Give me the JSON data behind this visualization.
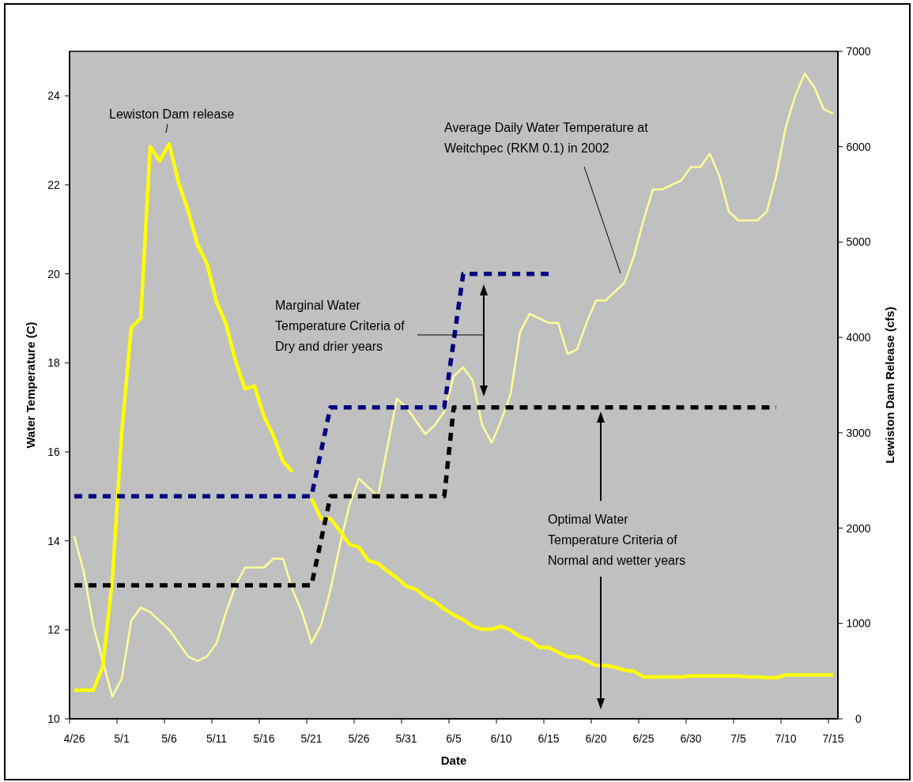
{
  "chart_data": {
    "type": "line",
    "xlabel": "Date",
    "ylabel": "Water Temperature (C)",
    "y2label": "Lewiston Dam Release (cfs)",
    "x": [
      "2002-04-26",
      "2002-04-27",
      "2002-04-28",
      "2002-04-29",
      "2002-04-30",
      "2002-05-01",
      "2002-05-02",
      "2002-05-03",
      "2002-05-04",
      "2002-05-05",
      "2002-05-06",
      "2002-05-07",
      "2002-05-08",
      "2002-05-09",
      "2002-05-10",
      "2002-05-11",
      "2002-05-12",
      "2002-05-13",
      "2002-05-14",
      "2002-05-15",
      "2002-05-16",
      "2002-05-17",
      "2002-05-18",
      "2002-05-19",
      "2002-05-20",
      "2002-05-21",
      "2002-05-22",
      "2002-05-23",
      "2002-05-24",
      "2002-05-25",
      "2002-05-26",
      "2002-05-27",
      "2002-05-28",
      "2002-05-29",
      "2002-05-30",
      "2002-05-31",
      "2002-06-01",
      "2002-06-02",
      "2002-06-03",
      "2002-06-04",
      "2002-06-05",
      "2002-06-06",
      "2002-06-07",
      "2002-06-08",
      "2002-06-09",
      "2002-06-10",
      "2002-06-11",
      "2002-06-12",
      "2002-06-13",
      "2002-06-14",
      "2002-06-15",
      "2002-06-16",
      "2002-06-17",
      "2002-06-18",
      "2002-06-19",
      "2002-06-20",
      "2002-06-21",
      "2002-06-22",
      "2002-06-23",
      "2002-06-24",
      "2002-06-25",
      "2002-06-26",
      "2002-06-27",
      "2002-06-28",
      "2002-06-29",
      "2002-06-30",
      "2002-07-01",
      "2002-07-02",
      "2002-07-03",
      "2002-07-04",
      "2002-07-05",
      "2002-07-06",
      "2002-07-07",
      "2002-07-08",
      "2002-07-09",
      "2002-07-10",
      "2002-07-11",
      "2002-07-12",
      "2002-07-13",
      "2002-07-14",
      "2002-07-15"
    ],
    "series": [
      {
        "color": "#ffff99",
        "values": [
          14.1,
          13.3,
          12.1,
          11.3,
          10.5,
          10.9,
          12.2,
          12.5,
          12.4,
          12.2,
          12.0,
          11.7,
          11.4,
          11.3,
          11.4,
          11.7,
          12.4,
          13.0,
          13.4,
          13.4,
          13.4,
          13.6,
          13.6,
          12.9,
          12.4,
          11.7,
          12.1,
          12.9,
          13.9,
          14.8,
          15.4,
          15.2,
          15.0,
          16.1,
          17.2,
          17.0,
          16.7,
          16.4,
          16.6,
          16.9,
          17.7,
          17.9,
          17.6,
          16.6,
          16.2,
          16.7,
          17.3,
          18.7,
          19.1,
          19.0,
          18.9,
          18.9,
          18.2,
          18.3,
          18.9,
          19.4,
          19.4,
          19.6,
          19.8,
          20.4,
          21.2,
          21.9,
          21.9,
          22.0,
          22.1,
          22.4,
          22.4,
          22.7,
          22.2,
          21.4,
          21.2,
          21.2,
          21.2,
          21.4,
          22.2,
          23.3,
          24.0,
          24.5,
          24.2,
          23.7,
          23.6
        ]
      },
      {
        "color": "#ffff00",
        "axis": "y2",
        "values": [
          300,
          300,
          300,
          550,
          1450,
          3000,
          4100,
          4200,
          6000,
          5850,
          6030,
          5620,
          5330,
          4970,
          4770,
          4370,
          4140,
          3750,
          3460,
          3490,
          3170,
          2970,
          2700,
          2590,
          null,
          2310,
          2100,
          2100,
          1970,
          1830,
          1800,
          1660,
          1630,
          1550,
          1480,
          1390,
          1360,
          1280,
          1230,
          1150,
          1090,
          1040,
          970,
          940,
          940,
          970,
          930,
          860,
          830,
          750,
          750,
          700,
          650,
          650,
          610,
          560,
          560,
          540,
          510,
          500,
          440,
          440,
          440,
          440,
          440,
          450,
          450,
          450,
          450,
          450,
          450,
          440,
          440,
          430,
          430,
          460,
          460,
          460,
          460,
          460,
          460
        ]
      },
      {
        "color": "#000080",
        "line_style": "dashed",
        "x": [
          "2002-04-26",
          "2002-05-21",
          "2002-05-23",
          "2002-06-04",
          "2002-06-06",
          "2002-06-15"
        ],
        "values": [
          15,
          15,
          17,
          17,
          20,
          20
        ]
      },
      {
        "color": "#000000",
        "line_style": "dashed",
        "x": [
          "2002-04-26",
          "2002-05-21",
          "2002-05-23",
          "2002-06-04",
          "2002-06-05",
          "2002-07-09"
        ],
        "values": [
          13,
          13,
          15,
          15,
          17,
          17
        ]
      }
    ],
    "xlim": [
      "2002-04-25T12:00",
      "2002-07-15T12:00"
    ],
    "xticks": [
      {
        "value": "2002-04-26",
        "label": "4/26"
      },
      {
        "value": "2002-05-01",
        "label": "5/1"
      },
      {
        "value": "2002-05-06",
        "label": "5/6"
      },
      {
        "value": "2002-05-11",
        "label": "5/11"
      },
      {
        "value": "2002-05-16",
        "label": "5/16"
      },
      {
        "value": "2002-05-21",
        "label": "5/21"
      },
      {
        "value": "2002-05-26",
        "label": "5/26"
      },
      {
        "value": "2002-05-31",
        "label": "5/31"
      },
      {
        "value": "2002-06-05",
        "label": "6/5"
      },
      {
        "value": "2002-06-10",
        "label": "6/10"
      },
      {
        "value": "2002-06-15",
        "label": "6/15"
      },
      {
        "value": "2002-06-20",
        "label": "6/20"
      },
      {
        "value": "2002-06-25",
        "label": "6/25"
      },
      {
        "value": "2002-06-30",
        "label": "6/30"
      },
      {
        "value": "2002-07-05",
        "label": "7/5"
      },
      {
        "value": "2002-07-10",
        "label": "7/10"
      },
      {
        "value": "2002-07-15",
        "label": "7/15"
      }
    ],
    "ylim": [
      10,
      25
    ],
    "yticks": [
      10,
      12,
      14,
      16,
      18,
      20,
      22,
      24
    ],
    "y2lim": [
      0,
      7000
    ],
    "y2ticks": [
      0,
      1000,
      2000,
      3000,
      4000,
      5000,
      6000,
      7000
    ],
    "annotations": [
      "Lewiston Dam release",
      "Average Daily Water Temperature at Weitchpec (RKM 0.1) in 2002",
      "Marginal Water Temperature Criteria of Dry and drier years",
      "Optimal Water Temperature Criteria of Normal and wetter years"
    ]
  }
}
